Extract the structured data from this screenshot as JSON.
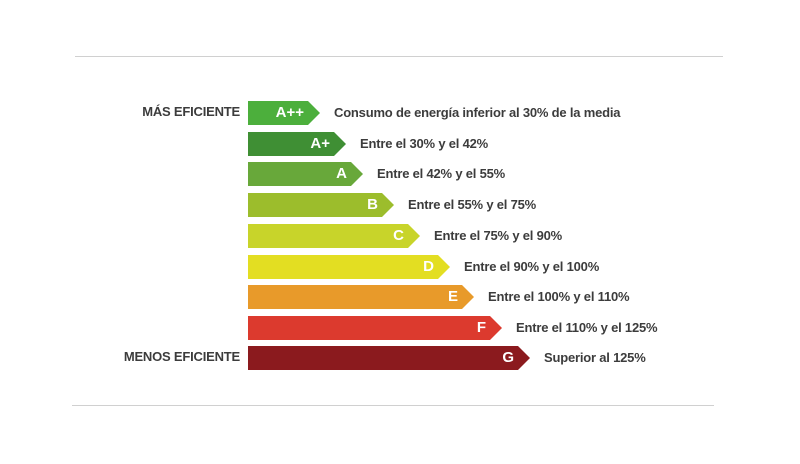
{
  "labels": {
    "most_efficient": "MÁS EFICIENTE",
    "least_efficient": "MENOS EFICIENTE"
  },
  "ratings": [
    {
      "grade": "A++",
      "description": "Consumo de energía inferior al 30% de la media",
      "color": "#4caf3c"
    },
    {
      "grade": "A+",
      "description": "Entre el 30% y el 42%",
      "color": "#3f8f34"
    },
    {
      "grade": "A",
      "description": "Entre el 42% y el 55%",
      "color": "#68a83a"
    },
    {
      "grade": "B",
      "description": "Entre el 55% y el 75%",
      "color": "#9cbd2c"
    },
    {
      "grade": "C",
      "description": "Entre el 75% y el 90%",
      "color": "#c8d42a"
    },
    {
      "grade": "D",
      "description": "Entre el 90% y el 100%",
      "color": "#e3de22"
    },
    {
      "grade": "E",
      "description": "Entre el 100% y el 110%",
      "color": "#e89a2a"
    },
    {
      "grade": "F",
      "description": "Entre el 110% y el 125%",
      "color": "#dc3a2e"
    },
    {
      "grade": "G",
      "description": "Superior al 125%",
      "color": "#8b1a1e"
    }
  ]
}
